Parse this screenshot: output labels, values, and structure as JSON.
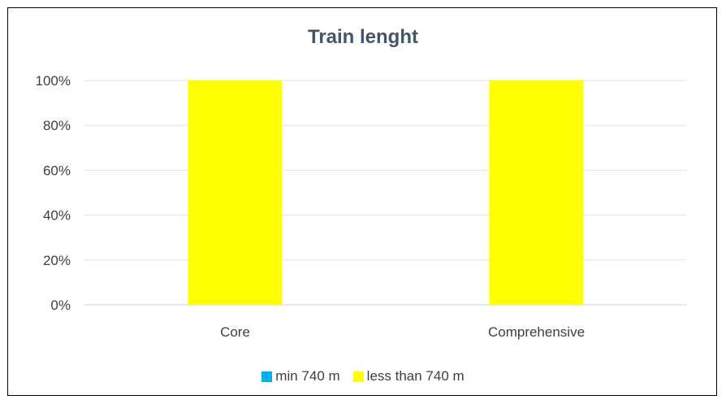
{
  "chart_data": {
    "type": "bar",
    "stacked": true,
    "title": "Train lenght",
    "categories": [
      "Core",
      "Comprehensive"
    ],
    "series": [
      {
        "name": "min 740 m",
        "values": [
          0,
          0
        ],
        "color": "#00b0f0"
      },
      {
        "name": "less than 740 m",
        "values": [
          1.0,
          1.0
        ],
        "color": "#ffff00"
      }
    ],
    "ylim": [
      0,
      1
    ],
    "yticks": [
      "0%",
      "20%",
      "40%",
      "60%",
      "80%",
      "100%"
    ],
    "grid": true,
    "legend": "bottom"
  }
}
